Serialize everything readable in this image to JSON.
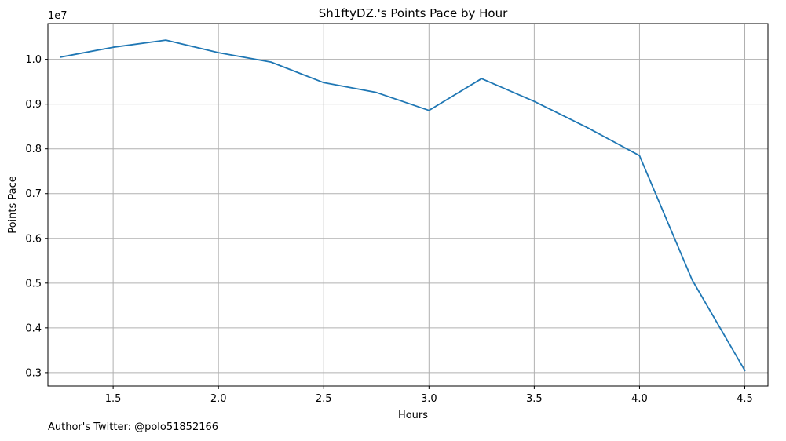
{
  "chart_data": {
    "type": "line",
    "title": "Sh1ftyDZ.'s Points Pace by Hour",
    "xlabel": "Hours",
    "ylabel": "Points Pace",
    "y_offset_label": "1e7",
    "xlim": [
      1.19,
      4.61
    ],
    "ylim": [
      2.7,
      10.8
    ],
    "x_ticks": [
      1.5,
      2.0,
      2.5,
      3.0,
      3.5,
      4.0,
      4.5
    ],
    "x_tick_labels": [
      "1.5",
      "2.0",
      "2.5",
      "3.0",
      "3.5",
      "4.0",
      "4.5"
    ],
    "y_ticks": [
      3,
      4,
      5,
      6,
      7,
      8,
      9,
      10
    ],
    "y_tick_labels": [
      "0.3",
      "0.4",
      "0.5",
      "0.6",
      "0.7",
      "0.8",
      "0.9",
      "1.0"
    ],
    "grid": true,
    "series": [
      {
        "color": "#1f77b4",
        "x": [
          1.25,
          1.5,
          1.75,
          2.0,
          2.25,
          2.5,
          2.75,
          3.0,
          3.25,
          3.5,
          3.75,
          4.0,
          4.25,
          4.5
        ],
        "y": [
          10.05,
          10.27,
          10.43,
          10.15,
          9.94,
          9.48,
          9.26,
          8.86,
          9.57,
          9.06,
          8.48,
          7.85,
          5.07,
          3.05
        ]
      }
    ]
  },
  "footer": {
    "text": "Author's Twitter: @polo51852166"
  }
}
